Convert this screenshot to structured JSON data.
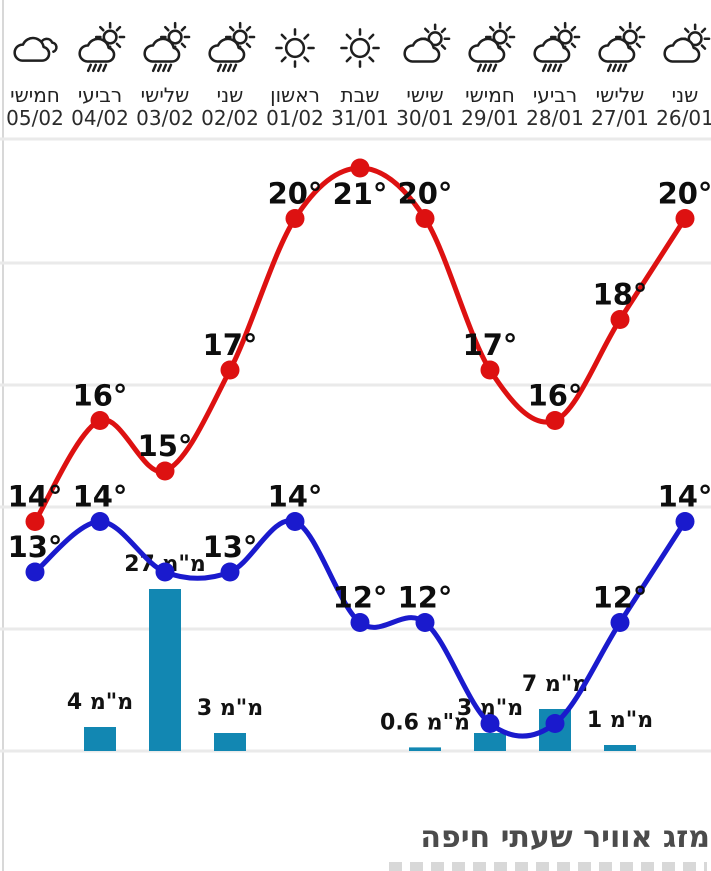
{
  "chart_data": {
    "type": "line+bar",
    "title": "מזג אוויר שעתי חיפה",
    "rtl": true,
    "grid": true,
    "ylim": [
      10,
      22
    ],
    "categories": [
      "05/02",
      "04/02",
      "03/02",
      "02/02",
      "01/02",
      "31/01",
      "30/01",
      "29/01",
      "28/01",
      "27/01",
      "26/01"
    ],
    "day_names": [
      "חמישי",
      "רביעי",
      "שלישי",
      "שני",
      "ראשון",
      "שבת",
      "שישי",
      "חמישי",
      "רביעי",
      "שלישי",
      "שני"
    ],
    "icons": [
      "cloud",
      "sun-shower",
      "sun-shower",
      "sun-shower",
      "sun",
      "sun",
      "cloud-sun",
      "sun-shower",
      "sun-shower",
      "sun-shower",
      "cloud-sun"
    ],
    "series": [
      {
        "name": "high-temp",
        "color": "#dd1111",
        "values": [
          14,
          16,
          15,
          17,
          20,
          21,
          20,
          17,
          16,
          18,
          20
        ],
        "labels": [
          "14°",
          "16°",
          "15°",
          "17°",
          "20°",
          "21°",
          "20°",
          "17°",
          "16°",
          "18°",
          "20°"
        ],
        "label_below_indices": [
          5
        ]
      },
      {
        "name": "low-temp",
        "color": "#1a1acd",
        "values": [
          13,
          14,
          13,
          13,
          14,
          12,
          12,
          10,
          10,
          12,
          14
        ],
        "labels": [
          "13°",
          "14°",
          null,
          "13°",
          "14°",
          "12°",
          "12°",
          null,
          null,
          "12°",
          "14°"
        ],
        "label_below_indices": []
      }
    ],
    "rain_bars": {
      "name": "precipitation-mm",
      "color": "#1287b2",
      "unit": "מ\"מ",
      "values": [
        null,
        4,
        27,
        3,
        null,
        null,
        0.6,
        3,
        7,
        1,
        null
      ],
      "labels": [
        null,
        "מ\"מ 4",
        "מ\"מ 27",
        "מ\"מ 3",
        null,
        null,
        "מ\"מ 0.6",
        "מ\"מ 3",
        "מ\"מ 7",
        "מ\"מ 1",
        null
      ]
    }
  },
  "footer": {
    "title": "מזג אוויר שעתי חיפה"
  }
}
